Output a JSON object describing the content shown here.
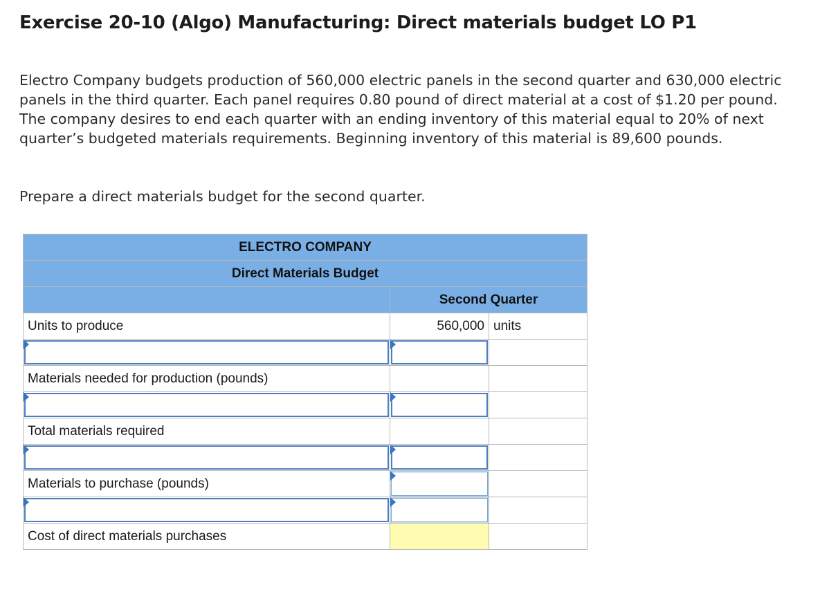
{
  "exercise": {
    "title": "Exercise 20-10 (Algo) Manufacturing: Direct materials budget LO P1",
    "problem_text": "Electro Company budgets production of 560,000 electric panels in the second quarter and 630,000 electric panels in the third quarter. Each panel requires 0.80 pound of direct material at a cost of $1.20 per pound. The company desires to end each quarter with an ending inventory of this material equal to 20% of next quarter’s budgeted materials requirements. Beginning inventory of this material is 89,600 pounds.",
    "instruction": "Prepare a direct materials budget for the second quarter."
  },
  "budget": {
    "company": "ELECTRO COMPANY",
    "title": "Direct Materials Budget",
    "column_header": "Second Quarter",
    "rows": {
      "units_label": "Units to produce",
      "units_value": "560,000",
      "units_unit": "units",
      "materials_needed_label": "Materials needed for production (pounds)",
      "total_required_label": "Total materials required",
      "to_purchase_label": "Materials to purchase (pounds)",
      "cost_label": "Cost of direct materials purchases"
    }
  },
  "colors": {
    "header_blue": "#7aafe6",
    "input_border": "#4b7fc0",
    "answer_yellow": "#fdfcb0"
  }
}
